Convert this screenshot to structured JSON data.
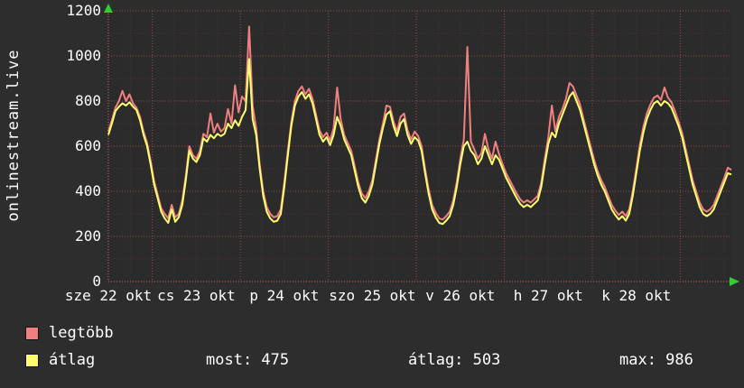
{
  "page": {
    "background": "#2d2d2d",
    "text_color": "#ffffff"
  },
  "chart_data": {
    "type": "line",
    "title": "onlinestream.live",
    "ylabel": "onlinestream.live",
    "xlabel": "",
    "ylim": [
      0,
      1200
    ],
    "y_ticks": [
      0,
      200,
      400,
      600,
      800,
      1000,
      1200
    ],
    "x_range_days": [
      0,
      7.08
    ],
    "x_tick_positions_days": [
      0,
      1,
      2,
      3,
      4,
      5,
      6
    ],
    "x_tick_labels": [
      "sze 22 okt",
      "cs 23 okt",
      "p 24 okt",
      "szo 25 okt",
      "v 26 okt",
      "h 27 okt",
      "k 28 okt"
    ],
    "day_boundary_gridlines_days": [
      0.5,
      1.5,
      2.5,
      3.5,
      4.5,
      5.5,
      6.5
    ],
    "grid": true,
    "legend_position": "bottom-left",
    "arrow_color": "#33cc33",
    "series_meta": [
      {
        "name": "legtöbb",
        "color": "#f08080",
        "value_index": 2
      },
      {
        "name": "átlag",
        "color": "#ffff70",
        "value_index": 1
      }
    ],
    "stats_annotations": [
      {
        "label": "most",
        "value": 475,
        "text": "most: 475"
      },
      {
        "label": "átlag",
        "value": 503,
        "text": "átlag: 503"
      },
      {
        "label": "max",
        "value": 986,
        "text": "max: 986"
      }
    ],
    "points_format": [
      "t_days",
      "atlag",
      "legtobb"
    ],
    "points": [
      [
        0.0,
        650,
        665
      ],
      [
        0.04,
        700,
        715
      ],
      [
        0.08,
        755,
        770
      ],
      [
        0.12,
        775,
        800
      ],
      [
        0.16,
        790,
        845
      ],
      [
        0.2,
        780,
        800
      ],
      [
        0.24,
        795,
        830
      ],
      [
        0.28,
        775,
        790
      ],
      [
        0.32,
        760,
        770
      ],
      [
        0.36,
        715,
        730
      ],
      [
        0.4,
        650,
        665
      ],
      [
        0.44,
        600,
        615
      ],
      [
        0.48,
        520,
        535
      ],
      [
        0.52,
        430,
        445
      ],
      [
        0.56,
        370,
        385
      ],
      [
        0.6,
        310,
        325
      ],
      [
        0.64,
        280,
        300
      ],
      [
        0.68,
        260,
        280
      ],
      [
        0.72,
        320,
        340
      ],
      [
        0.76,
        265,
        285
      ],
      [
        0.8,
        285,
        300
      ],
      [
        0.84,
        340,
        360
      ],
      [
        0.88,
        450,
        470
      ],
      [
        0.92,
        580,
        600
      ],
      [
        0.96,
        545,
        560
      ],
      [
        1.0,
        530,
        545
      ],
      [
        1.04,
        560,
        580
      ],
      [
        1.08,
        635,
        655
      ],
      [
        1.12,
        620,
        640
      ],
      [
        1.16,
        650,
        745
      ],
      [
        1.2,
        635,
        660
      ],
      [
        1.24,
        655,
        700
      ],
      [
        1.28,
        645,
        665
      ],
      [
        1.32,
        655,
        680
      ],
      [
        1.36,
        700,
        765
      ],
      [
        1.4,
        680,
        700
      ],
      [
        1.44,
        715,
        870
      ],
      [
        1.48,
        690,
        750
      ],
      [
        1.52,
        730,
        820
      ],
      [
        1.56,
        760,
        800
      ],
      [
        1.6,
        986,
        1130
      ],
      [
        1.64,
        720,
        780
      ],
      [
        1.68,
        650,
        680
      ],
      [
        1.72,
        500,
        520
      ],
      [
        1.76,
        380,
        400
      ],
      [
        1.8,
        310,
        330
      ],
      [
        1.84,
        280,
        300
      ],
      [
        1.88,
        265,
        285
      ],
      [
        1.92,
        270,
        290
      ],
      [
        1.96,
        300,
        320
      ],
      [
        2.0,
        420,
        440
      ],
      [
        2.04,
        560,
        580
      ],
      [
        2.08,
        690,
        710
      ],
      [
        2.12,
        780,
        800
      ],
      [
        2.16,
        820,
        845
      ],
      [
        2.2,
        840,
        865
      ],
      [
        2.24,
        810,
        830
      ],
      [
        2.28,
        830,
        855
      ],
      [
        2.32,
        790,
        810
      ],
      [
        2.36,
        720,
        740
      ],
      [
        2.4,
        650,
        670
      ],
      [
        2.44,
        620,
        640
      ],
      [
        2.48,
        640,
        660
      ],
      [
        2.52,
        605,
        625
      ],
      [
        2.56,
        650,
        680
      ],
      [
        2.6,
        730,
        860
      ],
      [
        2.64,
        690,
        720
      ],
      [
        2.68,
        630,
        650
      ],
      [
        2.72,
        595,
        615
      ],
      [
        2.76,
        560,
        580
      ],
      [
        2.8,
        490,
        510
      ],
      [
        2.84,
        420,
        440
      ],
      [
        2.88,
        370,
        390
      ],
      [
        2.92,
        350,
        370
      ],
      [
        2.96,
        380,
        400
      ],
      [
        3.0,
        430,
        450
      ],
      [
        3.04,
        520,
        540
      ],
      [
        3.08,
        610,
        630
      ],
      [
        3.12,
        680,
        700
      ],
      [
        3.16,
        740,
        780
      ],
      [
        3.2,
        755,
        775
      ],
      [
        3.24,
        690,
        710
      ],
      [
        3.28,
        645,
        665
      ],
      [
        3.32,
        700,
        730
      ],
      [
        3.36,
        720,
        745
      ],
      [
        3.4,
        650,
        670
      ],
      [
        3.44,
        610,
        630
      ],
      [
        3.48,
        640,
        665
      ],
      [
        3.52,
        625,
        645
      ],
      [
        3.56,
        580,
        600
      ],
      [
        3.6,
        480,
        500
      ],
      [
        3.64,
        390,
        410
      ],
      [
        3.68,
        320,
        340
      ],
      [
        3.72,
        285,
        305
      ],
      [
        3.76,
        260,
        280
      ],
      [
        3.8,
        255,
        275
      ],
      [
        3.84,
        270,
        290
      ],
      [
        3.88,
        290,
        310
      ],
      [
        3.92,
        340,
        360
      ],
      [
        3.96,
        420,
        440
      ],
      [
        4.0,
        520,
        545
      ],
      [
        4.04,
        600,
        630
      ],
      [
        4.08,
        620,
        1040
      ],
      [
        4.12,
        580,
        620
      ],
      [
        4.16,
        560,
        585
      ],
      [
        4.2,
        520,
        545
      ],
      [
        4.24,
        545,
        570
      ],
      [
        4.28,
        600,
        655
      ],
      [
        4.32,
        560,
        585
      ],
      [
        4.36,
        520,
        545
      ],
      [
        4.4,
        560,
        620
      ],
      [
        4.44,
        540,
        565
      ],
      [
        4.48,
        500,
        520
      ],
      [
        4.52,
        460,
        480
      ],
      [
        4.56,
        430,
        450
      ],
      [
        4.6,
        400,
        420
      ],
      [
        4.64,
        370,
        390
      ],
      [
        4.68,
        345,
        365
      ],
      [
        4.72,
        330,
        350
      ],
      [
        4.76,
        340,
        360
      ],
      [
        4.8,
        330,
        350
      ],
      [
        4.84,
        345,
        365
      ],
      [
        4.88,
        360,
        380
      ],
      [
        4.92,
        420,
        440
      ],
      [
        4.96,
        520,
        545
      ],
      [
        5.0,
        610,
        640
      ],
      [
        5.04,
        660,
        780
      ],
      [
        5.08,
        640,
        665
      ],
      [
        5.12,
        700,
        730
      ],
      [
        5.16,
        740,
        765
      ],
      [
        5.2,
        780,
        810
      ],
      [
        5.24,
        820,
        880
      ],
      [
        5.28,
        840,
        865
      ],
      [
        5.32,
        800,
        825
      ],
      [
        5.36,
        760,
        785
      ],
      [
        5.4,
        700,
        720
      ],
      [
        5.44,
        640,
        660
      ],
      [
        5.48,
        580,
        600
      ],
      [
        5.52,
        520,
        540
      ],
      [
        5.56,
        470,
        490
      ],
      [
        5.6,
        430,
        450
      ],
      [
        5.64,
        400,
        420
      ],
      [
        5.68,
        360,
        380
      ],
      [
        5.72,
        320,
        340
      ],
      [
        5.76,
        295,
        315
      ],
      [
        5.8,
        275,
        295
      ],
      [
        5.84,
        290,
        310
      ],
      [
        5.88,
        270,
        290
      ],
      [
        5.92,
        300,
        320
      ],
      [
        5.96,
        380,
        400
      ],
      [
        6.0,
        480,
        500
      ],
      [
        6.04,
        580,
        605
      ],
      [
        6.08,
        660,
        685
      ],
      [
        6.12,
        720,
        745
      ],
      [
        6.16,
        760,
        785
      ],
      [
        6.2,
        790,
        815
      ],
      [
        6.24,
        800,
        825
      ],
      [
        6.28,
        780,
        805
      ],
      [
        6.32,
        800,
        860
      ],
      [
        6.36,
        790,
        815
      ],
      [
        6.4,
        770,
        795
      ],
      [
        6.44,
        730,
        755
      ],
      [
        6.48,
        690,
        710
      ],
      [
        6.52,
        640,
        660
      ],
      [
        6.56,
        570,
        590
      ],
      [
        6.6,
        500,
        520
      ],
      [
        6.64,
        430,
        450
      ],
      [
        6.68,
        380,
        400
      ],
      [
        6.72,
        330,
        350
      ],
      [
        6.76,
        300,
        320
      ],
      [
        6.8,
        290,
        310
      ],
      [
        6.84,
        300,
        320
      ],
      [
        6.88,
        320,
        340
      ],
      [
        6.92,
        360,
        380
      ],
      [
        6.96,
        400,
        420
      ],
      [
        7.0,
        440,
        460
      ],
      [
        7.04,
        480,
        505
      ],
      [
        7.08,
        475,
        495
      ]
    ]
  }
}
